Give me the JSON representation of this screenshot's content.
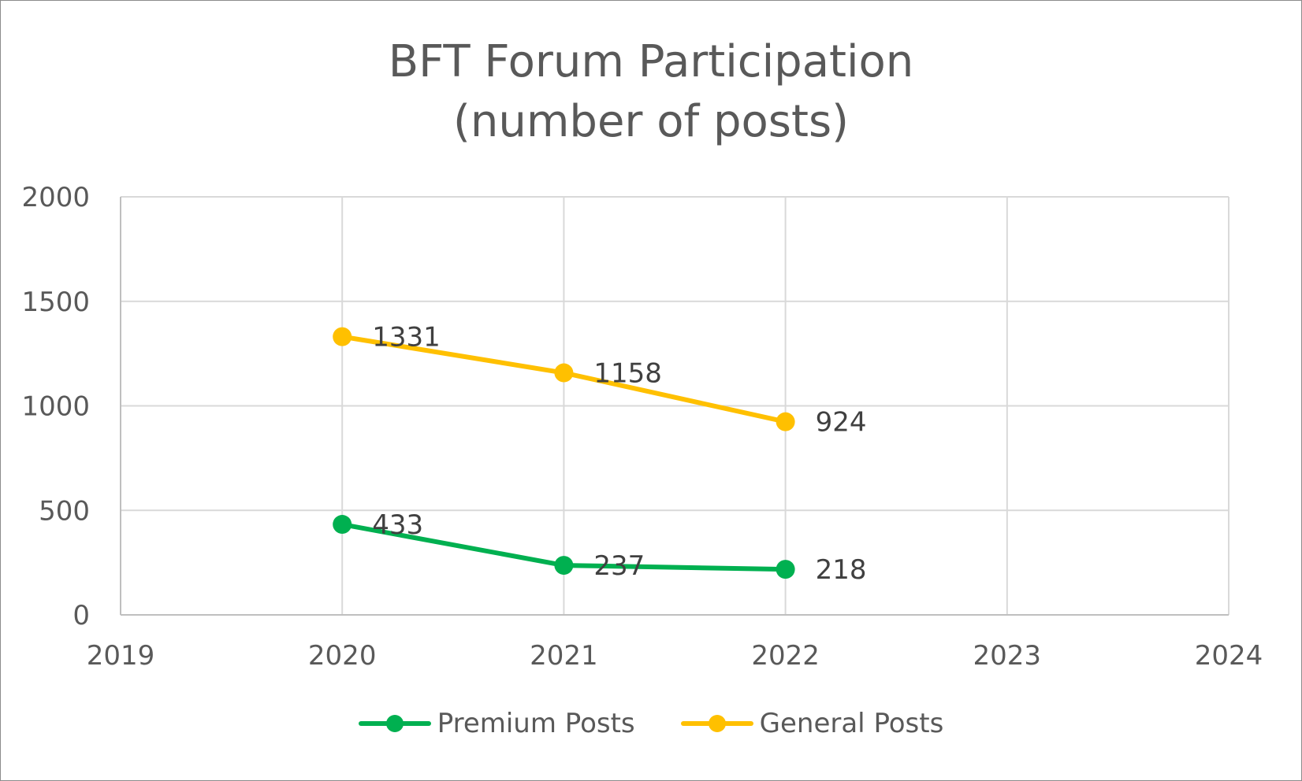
{
  "chart_data": {
    "type": "line",
    "title": [
      "BFT Forum Participation",
      "(number of posts)"
    ],
    "xlabel": "",
    "ylabel": "",
    "xlim": [
      2019,
      2024
    ],
    "ylim": [
      0,
      2000
    ],
    "x_ticks": [
      2019,
      2020,
      2021,
      2022,
      2023,
      2024
    ],
    "y_ticks": [
      0,
      500,
      1000,
      1500,
      2000
    ],
    "grid": true,
    "legend_position": "bottom",
    "series": [
      {
        "name": "Premium Posts",
        "color": "#00b050",
        "x": [
          2020,
          2021,
          2022
        ],
        "values": [
          433,
          237,
          218
        ]
      },
      {
        "name": "General Posts",
        "color": "#ffc000",
        "x": [
          2020,
          2021,
          2022
        ],
        "values": [
          1331,
          1158,
          924
        ]
      }
    ]
  }
}
